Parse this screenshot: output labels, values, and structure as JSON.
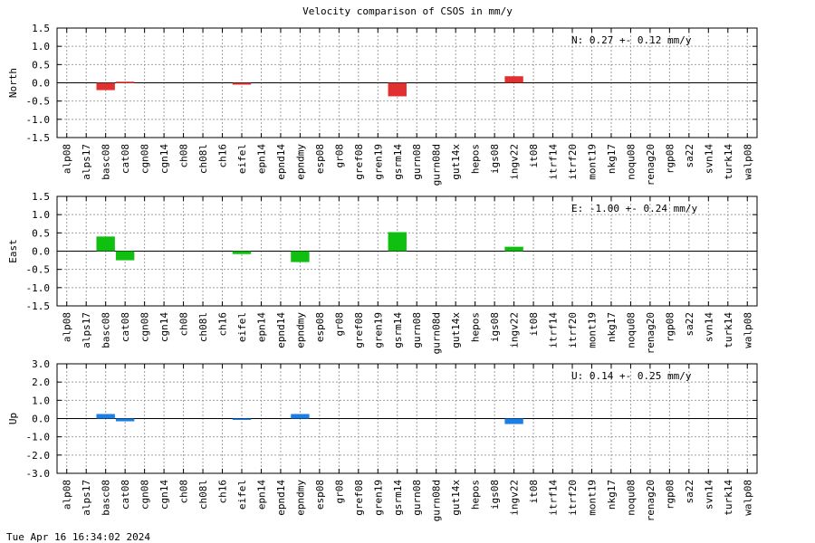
{
  "title": "Velocity comparison of CSOS in mm/y",
  "footer": "Tue Apr 16 16:34:02 2024",
  "chart_data": [
    {
      "type": "bar",
      "ylabel": "North",
      "ylim": [
        -1.5,
        1.5
      ],
      "yticks": [
        "1.5",
        "1.0",
        "0.5",
        "0.0",
        "-0.5",
        "-1.0",
        "-1.5"
      ],
      "grid": true,
      "color": "#e03030",
      "annotation": "N:   0.27 +-  0.12 mm/y",
      "categories": [
        "alp08",
        "alps17",
        "basc08",
        "cat08",
        "cgn08",
        "cgn14",
        "ch08",
        "ch08l",
        "ch16",
        "eifel",
        "epn14",
        "epnd14",
        "epndmy",
        "esp08",
        "gr08",
        "gref08",
        "gren19",
        "gsrm14",
        "gurn08",
        "gurn08d",
        "gut14x",
        "hepos",
        "igs08",
        "ingv22",
        "it08",
        "itrf14",
        "itrf20",
        "mont19",
        "nkg17",
        "noqu08",
        "renag20",
        "rgp08",
        "sa22",
        "svn14",
        "turk14",
        "walp08"
      ],
      "values": [
        null,
        null,
        -0.2,
        0.03,
        null,
        null,
        null,
        null,
        null,
        -0.05,
        null,
        null,
        null,
        null,
        null,
        null,
        null,
        -0.37,
        null,
        null,
        null,
        null,
        null,
        0.18,
        null,
        null,
        null,
        null,
        null,
        null,
        null,
        null,
        null,
        null,
        null,
        null
      ]
    },
    {
      "type": "bar",
      "ylabel": "East",
      "ylim": [
        -1.5,
        1.5
      ],
      "yticks": [
        "1.5",
        "1.0",
        "0.5",
        "0.0",
        "-0.5",
        "-1.0",
        "-1.5"
      ],
      "grid": true,
      "color": "#10c010",
      "annotation": "E:  -1.00 +-  0.24 mm/y",
      "categories": [
        "alp08",
        "alps17",
        "basc08",
        "cat08",
        "cgn08",
        "cgn14",
        "ch08",
        "ch08l",
        "ch16",
        "eifel",
        "epn14",
        "epnd14",
        "epndmy",
        "esp08",
        "gr08",
        "gref08",
        "gren19",
        "gsrm14",
        "gurn08",
        "gurn08d",
        "gut14x",
        "hepos",
        "igs08",
        "ingv22",
        "it08",
        "itrf14",
        "itrf20",
        "mont19",
        "nkg17",
        "noqu08",
        "renag20",
        "rgp08",
        "sa22",
        "svn14",
        "turk14",
        "walp08"
      ],
      "values": [
        null,
        null,
        0.4,
        -0.25,
        null,
        null,
        null,
        null,
        null,
        -0.08,
        null,
        null,
        -0.3,
        null,
        null,
        null,
        null,
        0.52,
        null,
        null,
        null,
        null,
        null,
        0.12,
        null,
        null,
        null,
        null,
        null,
        null,
        null,
        null,
        null,
        null,
        null,
        null
      ]
    },
    {
      "type": "bar",
      "ylabel": "Up",
      "ylim": [
        -3.0,
        3.0
      ],
      "yticks": [
        "3.0",
        "2.0",
        "1.0",
        "0.0",
        "-1.0",
        "-2.0",
        "-3.0"
      ],
      "grid": true,
      "color": "#1a7fe8",
      "annotation": "U:   0.14 +-  0.25 mm/y",
      "categories": [
        "alp08",
        "alps17",
        "basc08",
        "cat08",
        "cgn08",
        "cgn14",
        "ch08",
        "ch08l",
        "ch16",
        "eifel",
        "epn14",
        "epnd14",
        "epndmy",
        "esp08",
        "gr08",
        "gref08",
        "gren19",
        "gsrm14",
        "gurn08",
        "gurn08d",
        "gut14x",
        "hepos",
        "igs08",
        "ingv22",
        "it08",
        "itrf14",
        "itrf20",
        "mont19",
        "nkg17",
        "noqu08",
        "renag20",
        "rgp08",
        "sa22",
        "svn14",
        "turk14",
        "walp08"
      ],
      "values": [
        null,
        null,
        0.25,
        -0.15,
        null,
        null,
        null,
        null,
        null,
        -0.05,
        null,
        null,
        0.25,
        null,
        null,
        null,
        null,
        null,
        null,
        null,
        null,
        null,
        null,
        -0.3,
        null,
        null,
        null,
        null,
        null,
        null,
        null,
        null,
        null,
        null,
        null,
        null
      ]
    }
  ]
}
